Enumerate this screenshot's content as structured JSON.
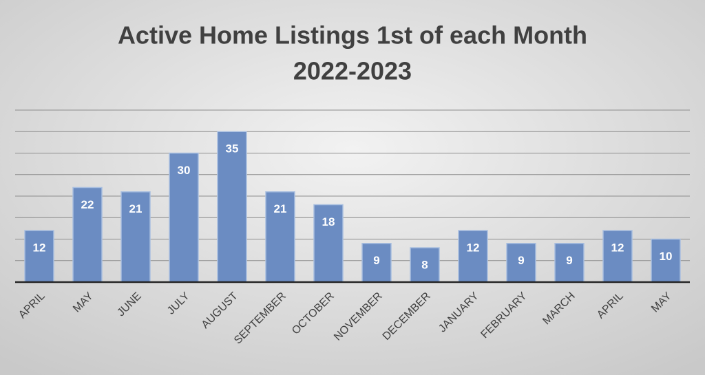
{
  "chart_data": {
    "type": "bar",
    "title": "Active Home Listings 1st of each Month",
    "subtitle": "2022-2023",
    "categories": [
      "APRIL",
      "MAY",
      "JUNE",
      "JULY",
      "AUGUST",
      "SEPTEMBER",
      "OCTOBER",
      "NOVEMBER",
      "DECEMBER",
      "JANUARY",
      "FEBRUARY",
      "MARCH",
      "APRIL",
      "MAY"
    ],
    "values": [
      12,
      22,
      21,
      30,
      35,
      21,
      18,
      9,
      8,
      12,
      9,
      9,
      12,
      10
    ],
    "color": "#6b8cc2",
    "ylim": [
      0,
      40
    ],
    "yticks": [
      0,
      5,
      10,
      15,
      20,
      25,
      30,
      35,
      40
    ],
    "grid": true
  }
}
